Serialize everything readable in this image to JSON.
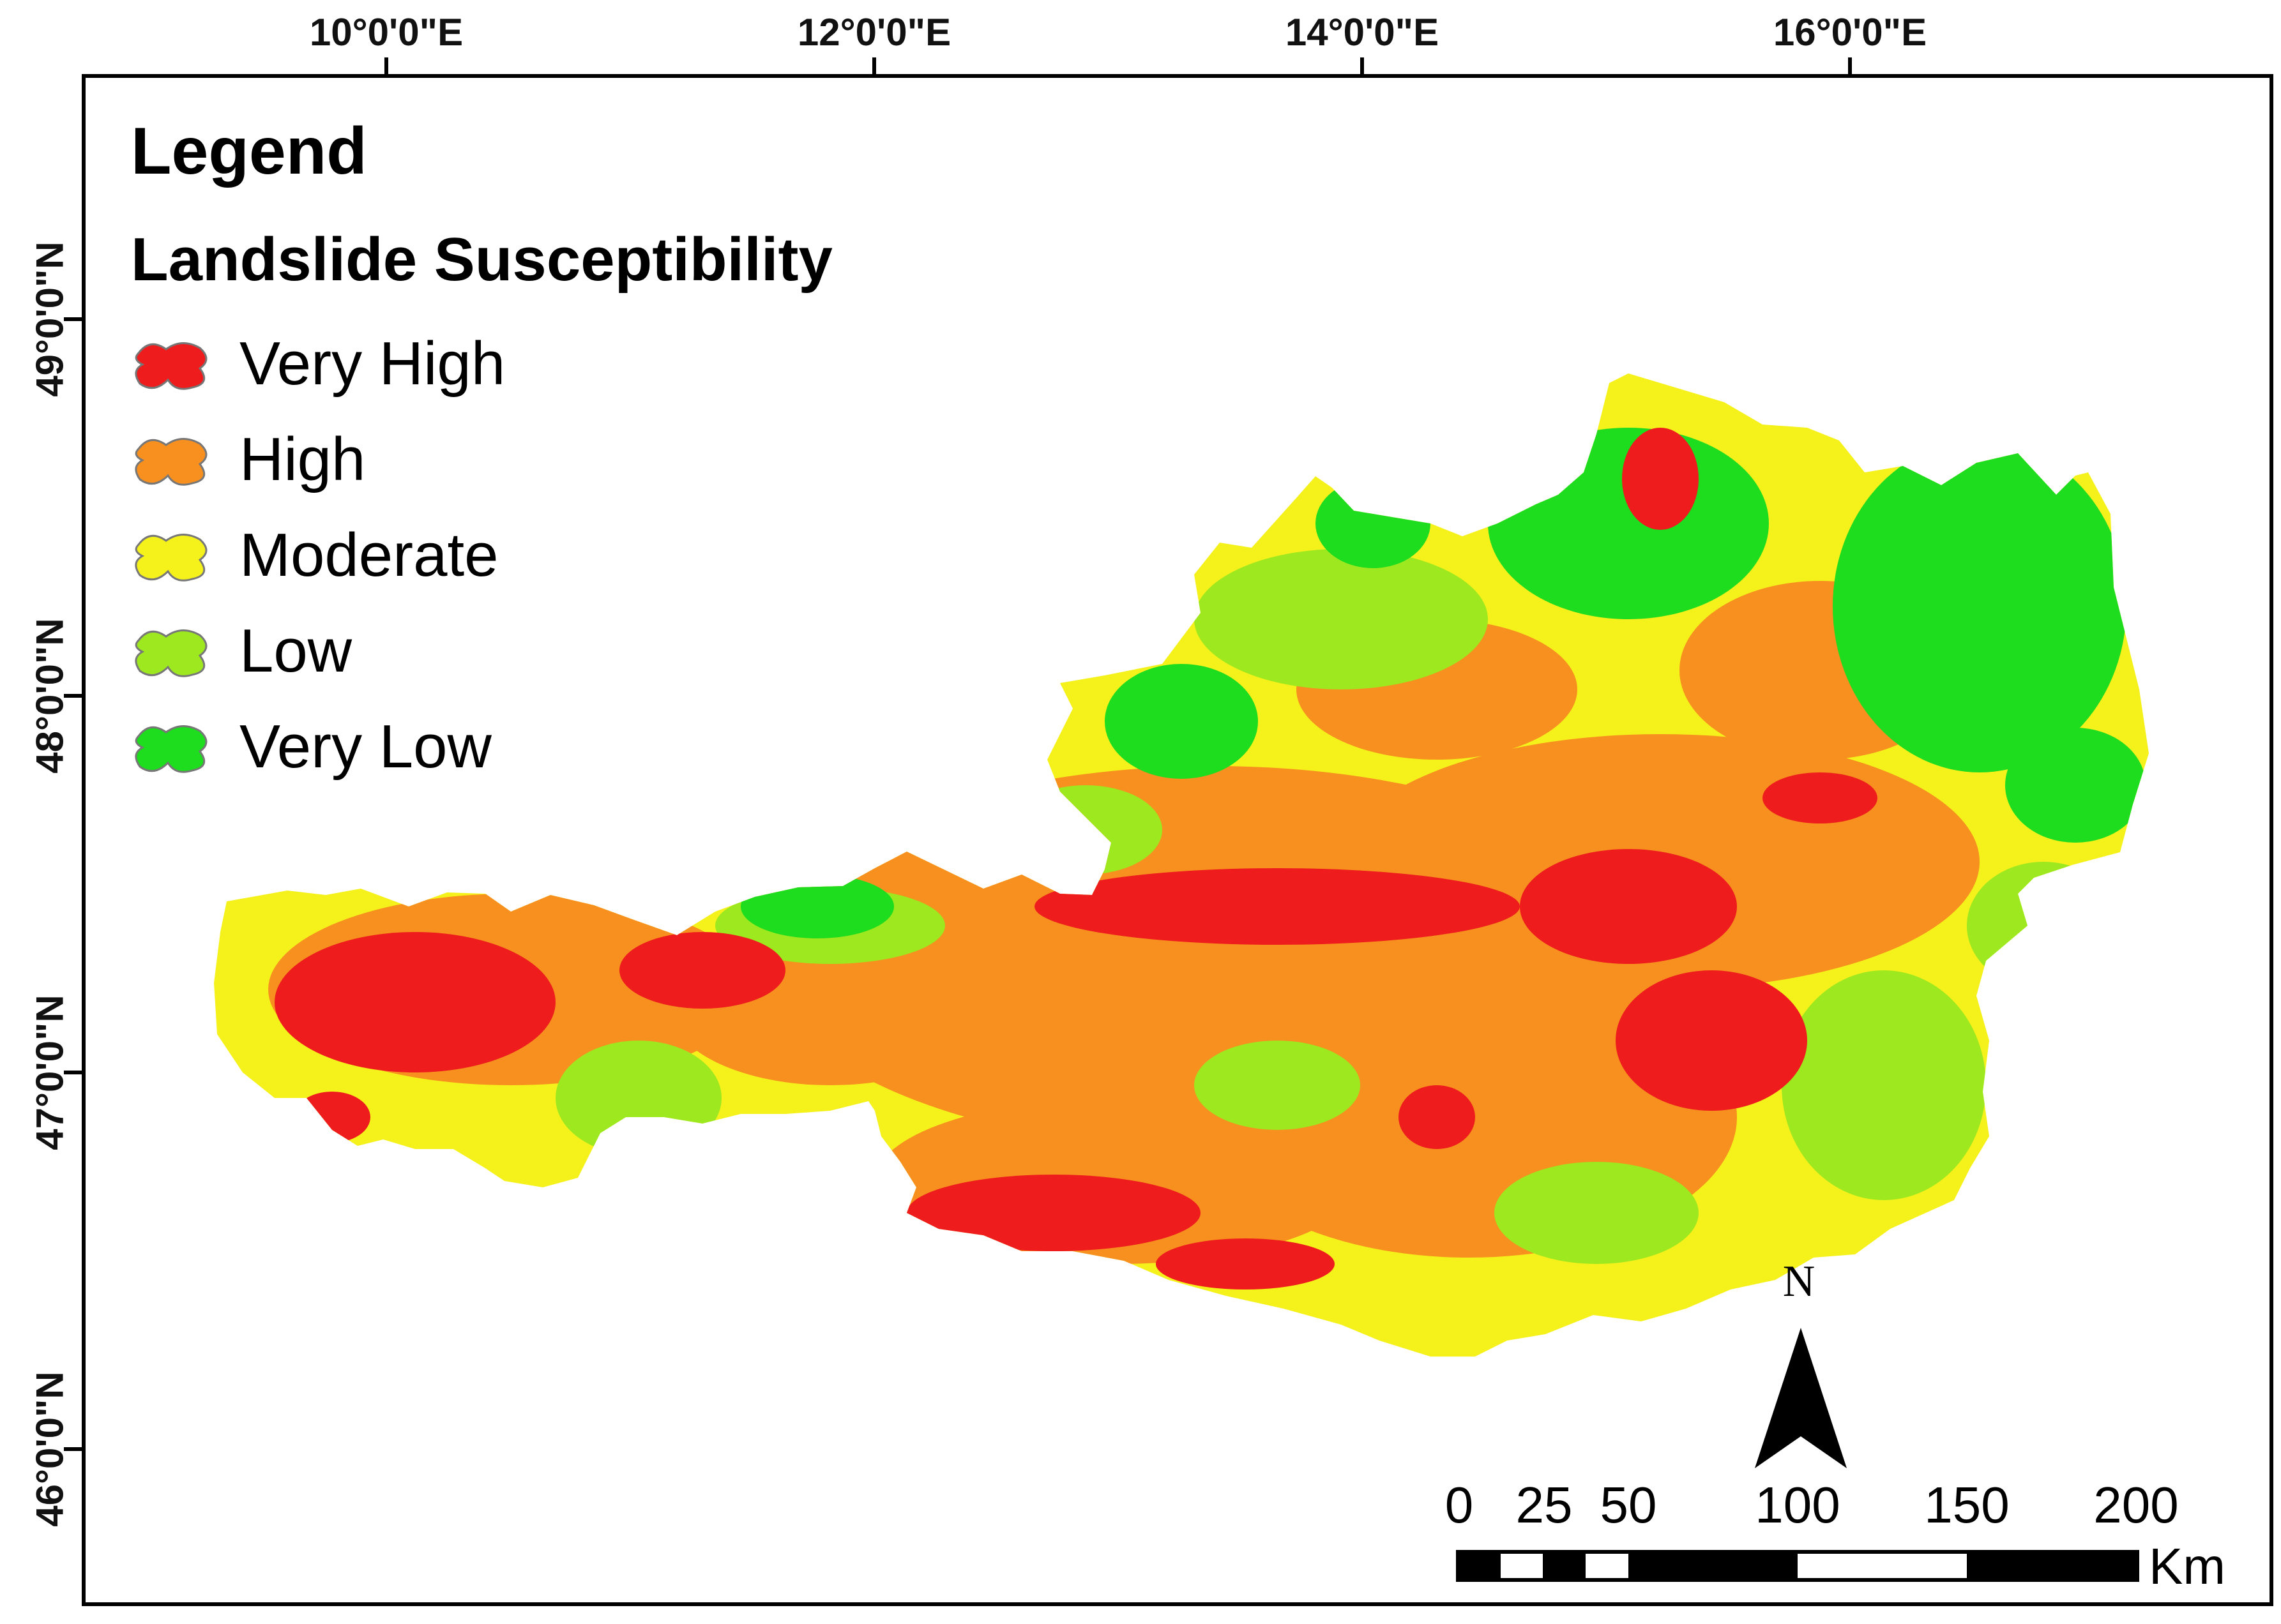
{
  "map": {
    "longitude_labels": [
      "10°0'0\"E",
      "12°0'0\"E",
      "14°0'0\"E",
      "16°0'0\"E"
    ],
    "latitude_labels": [
      "49°0'0\"N",
      "48°0'0\"N",
      "47°0'0\"N",
      "46°0'0\"N"
    ]
  },
  "legend": {
    "title": "Legend",
    "subtitle": "Landslide Susceptibility",
    "items": [
      {
        "label": "Very High",
        "color": "#ee1c1c"
      },
      {
        "label": "High",
        "color": "#f7901e"
      },
      {
        "label": "Moderate",
        "color": "#f5f11b"
      },
      {
        "label": "Low",
        "color": "#9de81f"
      },
      {
        "label": "Very Low",
        "color": "#1edc1e"
      }
    ]
  },
  "north_arrow": {
    "label": "N"
  },
  "scale_bar": {
    "labels": [
      "0",
      "25",
      "50",
      "100",
      "150",
      "200"
    ],
    "unit": "Km"
  }
}
